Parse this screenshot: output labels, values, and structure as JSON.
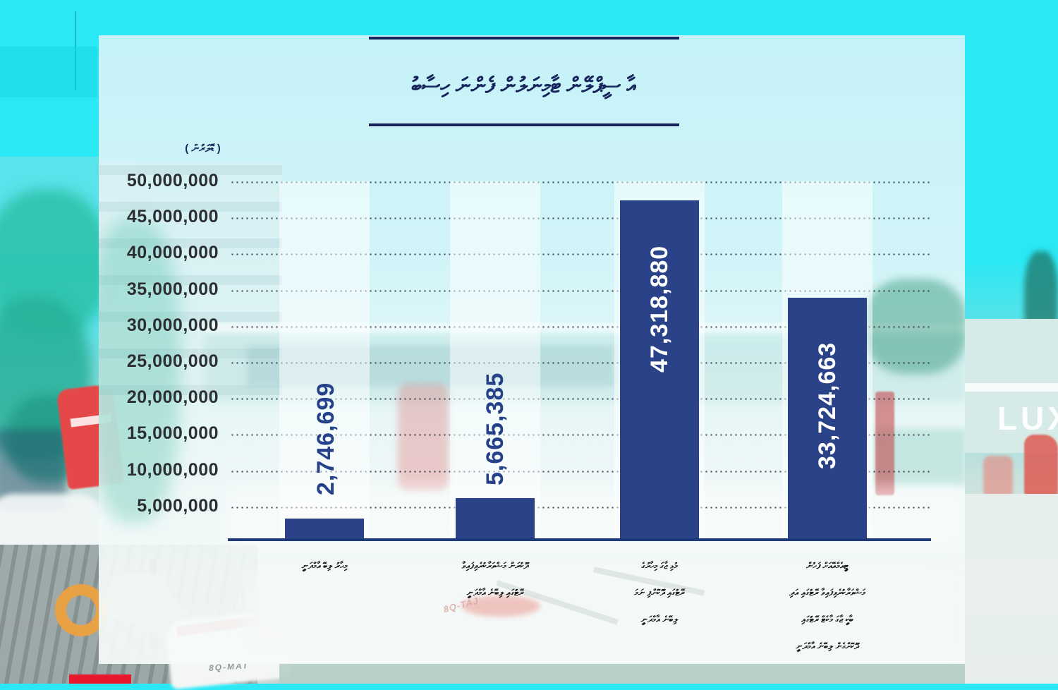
{
  "title": {
    "text": "އާ ސީޕްލޭން ޓާމިނަލުން ފެންނަ ހިސާބު"
  },
  "axis": {
    "unit_label": "( ޑޮލަރުން )",
    "ticks": [
      "50,000,000",
      "45,000,000",
      "40,000,000",
      "35,000,000",
      "30,000,000",
      "25,000,000",
      "20,000,000",
      "15,000,000",
      "10,000,000",
      "5,000,000"
    ]
  },
  "bars": [
    {
      "value_label": "2,746,699",
      "lines": [
        "މިހާރު ލިބޭ އާމްދަނީ"
      ]
    },
    {
      "value_label": "5,665,385",
      "lines": [
        "ދޫކުރަން މަޝްވަރާކުރެވިފައިވާ",
        "ރޭޓުގައި ލިބޭނެ އާމްދަނީ"
      ]
    },
    {
      "value_label": "47,318,880",
      "lines": [
        "މުޅި ޖާގަ މިހާރުގެ",
        "ރޭޓުގައި ދޫކޮށްފި ނަމަ",
        "ލިބޭނެ އާމްދަނީ"
      ]
    },
    {
      "value_label": "33,724,663",
      "lines": [
        "ޓީއެމްއޭއަށް ފަހުން",
        "މަޝްވަރާކުރެވިފައިވާ ރޭޓުގައި އަދި",
        "ބާކީ ޖާގަ މާކެޓް ރޭޓުގައި",
        "ދޫކޮށްގެން ލިބޭނެ އާމްދަނީ"
      ]
    }
  ],
  "chart_data": {
    "type": "bar",
    "title": "އާ ސީޕްލޭން ޓާމިނަލުން ފެންނަ ހިސާބު",
    "unit": "( ޑޮލަރުން )",
    "categories": [
      "މިހާރު ލިބޭ އާމްދަނީ",
      "ދޫކުރަން މަޝްވަރާކުރެވިފައިވާ ރޭޓުގައި ލިބޭނެ އާމްދަނީ",
      "މުޅި ޖާގަ މިހާރުގެ ރޭޓުގައި ދޫކޮށްފި ނަމަ ލިބޭނެ އާމްދަނީ",
      "ޓީއެމްއޭއަށް ފަހުން މަޝްވަރާކުރެވިފައިވާ ރޭޓުގައި އަދި ބާކީ ޖާގަ މާކެޓް ރޭޓުގައި ދޫކޮށްގެން ލިބޭނެ އާމްދަނީ"
    ],
    "values": [
      2746699,
      5665385,
      47318880,
      33724663
    ],
    "value_labels": [
      "2,746,699",
      "5,665,385",
      "47,318,880",
      "33,724,663"
    ],
    "ylim": [
      0,
      50000000
    ],
    "ytick_step": 5000000,
    "grid": "dotted-horizontal",
    "legend": "none",
    "bar_color": "#2a4287"
  },
  "background": {
    "sign_text": "LUX",
    "registration_1": "8Q-MAT",
    "registration_2": "8Q-TAJ"
  },
  "colors": {
    "cyan": "#2ae8f4",
    "panel": "#e8f7f9",
    "bar": "#2a4287",
    "navy_text": "#16265c",
    "tick_text": "#2b2e33",
    "value_outside": "#24418a",
    "value_inside": "#ffffff",
    "logo_red": "#e8192c"
  }
}
